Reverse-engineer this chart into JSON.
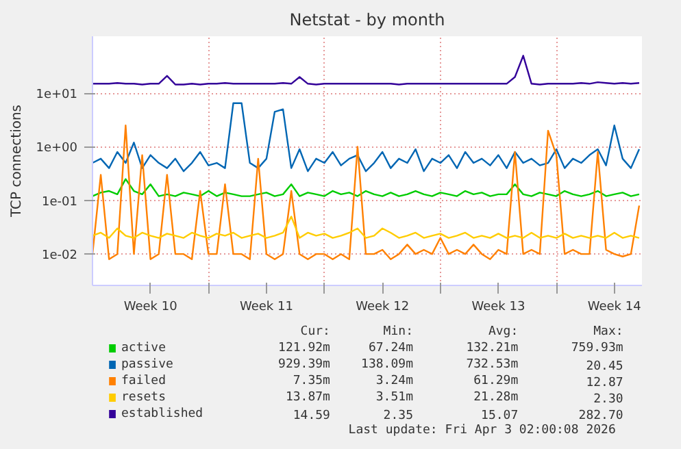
{
  "chart_data": {
    "type": "line",
    "title": "Netstat - by month",
    "ylabel": "TCP connections",
    "log": "y",
    "grid": true,
    "legend": "bottom",
    "marker": "none",
    "line_style": "solid",
    "xlim": [
      "2026-03-02T00:00",
      "2026-04-04T04:00"
    ],
    "xticks": [
      {
        "value": "2026-03-05T12:00",
        "label": "Week 10"
      },
      {
        "value": "2026-03-09T00:00",
        "label": null
      },
      {
        "value": "2026-03-12T12:00",
        "label": "Week 11"
      },
      {
        "value": "2026-03-16T00:00",
        "label": null
      },
      {
        "value": "2026-03-19T12:00",
        "label": "Week 12"
      },
      {
        "value": "2026-03-23T00:00",
        "label": null
      },
      {
        "value": "2026-03-26T12:00",
        "label": "Week 13"
      },
      {
        "value": "2026-03-30T00:00",
        "label": null
      },
      {
        "value": "2026-04-02T12:00",
        "label": "Week 14"
      }
    ],
    "ylim": [
      0.0026,
      115
    ],
    "yticks": [
      {
        "value": 0.01,
        "label": "1e-02"
      },
      {
        "value": 0.1,
        "label": "1e-01"
      },
      {
        "value": 1,
        "label": "1e+00"
      },
      {
        "value": 10,
        "label": "1e+01"
      }
    ],
    "x": [
      "2026-03-02T00:00",
      "2026-03-02T12:00",
      "2026-03-03T00:00",
      "2026-03-03T12:00",
      "2026-03-04T00:00",
      "2026-03-04T12:00",
      "2026-03-05T00:00",
      "2026-03-05T12:00",
      "2026-03-06T00:00",
      "2026-03-06T12:00",
      "2026-03-07T00:00",
      "2026-03-07T12:00",
      "2026-03-08T00:00",
      "2026-03-08T12:00",
      "2026-03-09T00:00",
      "2026-03-09T12:00",
      "2026-03-10T00:00",
      "2026-03-10T12:00",
      "2026-03-11T00:00",
      "2026-03-11T12:00",
      "2026-03-12T00:00",
      "2026-03-12T12:00",
      "2026-03-13T00:00",
      "2026-03-13T12:00",
      "2026-03-14T00:00",
      "2026-03-14T12:00",
      "2026-03-15T00:00",
      "2026-03-15T12:00",
      "2026-03-16T00:00",
      "2026-03-16T12:00",
      "2026-03-17T00:00",
      "2026-03-17T12:00",
      "2026-03-18T00:00",
      "2026-03-18T12:00",
      "2026-03-19T00:00",
      "2026-03-19T12:00",
      "2026-03-20T00:00",
      "2026-03-20T12:00",
      "2026-03-21T00:00",
      "2026-03-21T12:00",
      "2026-03-22T00:00",
      "2026-03-22T12:00",
      "2026-03-23T00:00",
      "2026-03-23T12:00",
      "2026-03-24T00:00",
      "2026-03-24T12:00",
      "2026-03-25T00:00",
      "2026-03-25T12:00",
      "2026-03-26T00:00",
      "2026-03-26T12:00",
      "2026-03-27T00:00",
      "2026-03-27T12:00",
      "2026-03-28T00:00",
      "2026-03-28T12:00",
      "2026-03-29T00:00",
      "2026-03-29T12:00",
      "2026-03-30T00:00",
      "2026-03-30T12:00",
      "2026-03-31T00:00",
      "2026-03-31T12:00",
      "2026-04-01T00:00",
      "2026-04-01T12:00",
      "2026-04-02T00:00",
      "2026-04-02T12:00",
      "2026-04-03T00:00",
      "2026-04-03T12:00",
      "2026-04-04T00:00"
    ],
    "series": [
      {
        "name": "active",
        "color": "#00cc00",
        "values": [
          0.12,
          0.14,
          0.15,
          0.13,
          0.25,
          0.15,
          0.13,
          0.2,
          0.12,
          0.13,
          0.12,
          0.14,
          0.13,
          0.12,
          0.15,
          0.12,
          0.14,
          0.13,
          0.12,
          0.12,
          0.13,
          0.14,
          0.12,
          0.13,
          0.2,
          0.12,
          0.14,
          0.13,
          0.12,
          0.15,
          0.13,
          0.14,
          0.12,
          0.15,
          0.13,
          0.12,
          0.14,
          0.12,
          0.13,
          0.15,
          0.13,
          0.12,
          0.14,
          0.13,
          0.12,
          0.15,
          0.13,
          0.14,
          0.12,
          0.13,
          0.13,
          0.2,
          0.13,
          0.12,
          0.14,
          0.13,
          0.12,
          0.15,
          0.13,
          0.12,
          0.13,
          0.15,
          0.12,
          0.13,
          0.14,
          0.12,
          0.13
        ]
      },
      {
        "name": "passive",
        "color": "#0066b3",
        "values": [
          0.5,
          0.6,
          0.4,
          0.8,
          0.5,
          1.2,
          0.4,
          0.7,
          0.5,
          0.4,
          0.6,
          0.35,
          0.5,
          0.8,
          0.45,
          0.5,
          0.4,
          6.5,
          6.5,
          0.5,
          0.4,
          0.6,
          4.5,
          5,
          0.4,
          0.9,
          0.35,
          0.6,
          0.5,
          0.8,
          0.45,
          0.6,
          0.7,
          0.35,
          0.5,
          0.8,
          0.4,
          0.6,
          0.5,
          0.9,
          0.35,
          0.6,
          0.5,
          0.7,
          0.4,
          0.8,
          0.5,
          0.6,
          0.45,
          0.7,
          0.4,
          0.8,
          0.5,
          0.6,
          0.45,
          0.5,
          0.9,
          0.4,
          0.6,
          0.5,
          0.7,
          0.9,
          0.45,
          2.5,
          0.6,
          0.4,
          0.9
        ]
      },
      {
        "name": "failed",
        "color": "#ff8000",
        "values": [
          0.01,
          0.3,
          0.008,
          0.01,
          2.5,
          0.01,
          0.7,
          0.008,
          0.01,
          0.3,
          0.01,
          0.01,
          0.008,
          0.15,
          0.01,
          0.01,
          0.2,
          0.01,
          0.01,
          0.008,
          0.6,
          0.01,
          0.008,
          0.01,
          0.15,
          0.01,
          0.008,
          0.01,
          0.01,
          0.008,
          0.01,
          0.008,
          1.0,
          0.01,
          0.01,
          0.012,
          0.008,
          0.01,
          0.015,
          0.01,
          0.012,
          0.01,
          0.02,
          0.01,
          0.012,
          0.01,
          0.015,
          0.01,
          0.008,
          0.012,
          0.01,
          0.8,
          0.01,
          0.012,
          0.01,
          2.0,
          0.7,
          0.01,
          0.012,
          0.01,
          0.01,
          0.8,
          0.012,
          0.01,
          0.009,
          0.01,
          0.08
        ]
      },
      {
        "name": "resets",
        "color": "#ffcc00",
        "values": [
          0.022,
          0.025,
          0.02,
          0.03,
          0.022,
          0.02,
          0.025,
          0.022,
          0.02,
          0.024,
          0.022,
          0.02,
          0.025,
          0.022,
          0.02,
          0.024,
          0.022,
          0.025,
          0.02,
          0.022,
          0.024,
          0.02,
          0.022,
          0.025,
          0.05,
          0.02,
          0.025,
          0.022,
          0.024,
          0.02,
          0.022,
          0.025,
          0.03,
          0.02,
          0.022,
          0.03,
          0.025,
          0.02,
          0.022,
          0.025,
          0.02,
          0.022,
          0.024,
          0.02,
          0.022,
          0.025,
          0.02,
          0.022,
          0.02,
          0.024,
          0.02,
          0.022,
          0.02,
          0.025,
          0.02,
          0.022,
          0.02,
          0.024,
          0.02,
          0.022,
          0.02,
          0.022,
          0.02,
          0.025,
          0.02,
          0.022,
          0.02
        ]
      },
      {
        "name": "established",
        "color": "#330099",
        "values": [
          15,
          15,
          15,
          15.5,
          15,
          15,
          14.5,
          15,
          15,
          21,
          14.5,
          14.5,
          15,
          14.5,
          15,
          15,
          15.5,
          15,
          15,
          15,
          15,
          15,
          15,
          15.5,
          15,
          20,
          15,
          14.5,
          15,
          15,
          15,
          15,
          15,
          15,
          15,
          15,
          15,
          14.5,
          15,
          15,
          15,
          15,
          15,
          15,
          15,
          15,
          15,
          15,
          15,
          15,
          15,
          20,
          50,
          15,
          14.5,
          15,
          15,
          15,
          15,
          15.5,
          15,
          16,
          15.5,
          15,
          15.5,
          15,
          15.5
        ]
      }
    ],
    "annotations": [
      "Cur:",
      "Min:",
      "Avg:",
      "Max:",
      "121.92m",
      "67.24m",
      "132.21m",
      "759.93m",
      "929.39m",
      "138.09m",
      "732.53m",
      "20.45",
      "7.35m",
      "3.24m",
      "61.29m",
      "12.87",
      "13.87m",
      "3.51m",
      "21.28m",
      "2.30",
      "14.59",
      "2.35",
      "15.07",
      "282.70",
      "Last update: Fri Apr  3 02:00:08 2026"
    ]
  }
}
